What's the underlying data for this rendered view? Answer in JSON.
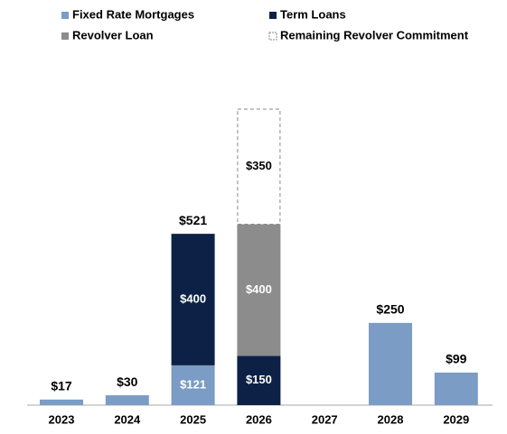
{
  "chart_data": {
    "type": "stacked_bar",
    "categories": [
      "2023",
      "2024",
      "2025",
      "2026",
      "2027",
      "2028",
      "2029"
    ],
    "series": [
      {
        "name": "Fixed Rate Mortgages",
        "color": "#7b9cc4",
        "values": [
          17,
          30,
          121,
          null,
          null,
          250,
          99
        ],
        "value_labels": [
          null,
          null,
          "$121",
          null,
          null,
          null,
          null
        ]
      },
      {
        "name": "Term Loans",
        "color": "#0c2145",
        "values": [
          null,
          null,
          400,
          150,
          null,
          null,
          null
        ],
        "value_labels": [
          null,
          null,
          "$400",
          "$150",
          null,
          null,
          null
        ]
      },
      {
        "name": "Revolver Loan",
        "color": "#8c8c8c",
        "values": [
          null,
          null,
          null,
          400,
          null,
          null,
          null
        ],
        "value_labels": [
          null,
          null,
          null,
          "$400",
          null,
          null,
          null
        ]
      },
      {
        "name": "Remaining Revolver Commitment",
        "color": "#ffffff",
        "dashed": true,
        "values": [
          null,
          null,
          null,
          350,
          null,
          null,
          null
        ],
        "value_labels": [
          null,
          null,
          null,
          "$350",
          null,
          null,
          null
        ]
      }
    ],
    "totals": {
      "values": [
        17,
        30,
        521,
        null,
        null,
        250,
        99
      ],
      "value_labels": [
        "$17",
        "$30",
        "$521",
        null,
        null,
        "$250",
        "$99"
      ]
    },
    "legend": "top"
  }
}
